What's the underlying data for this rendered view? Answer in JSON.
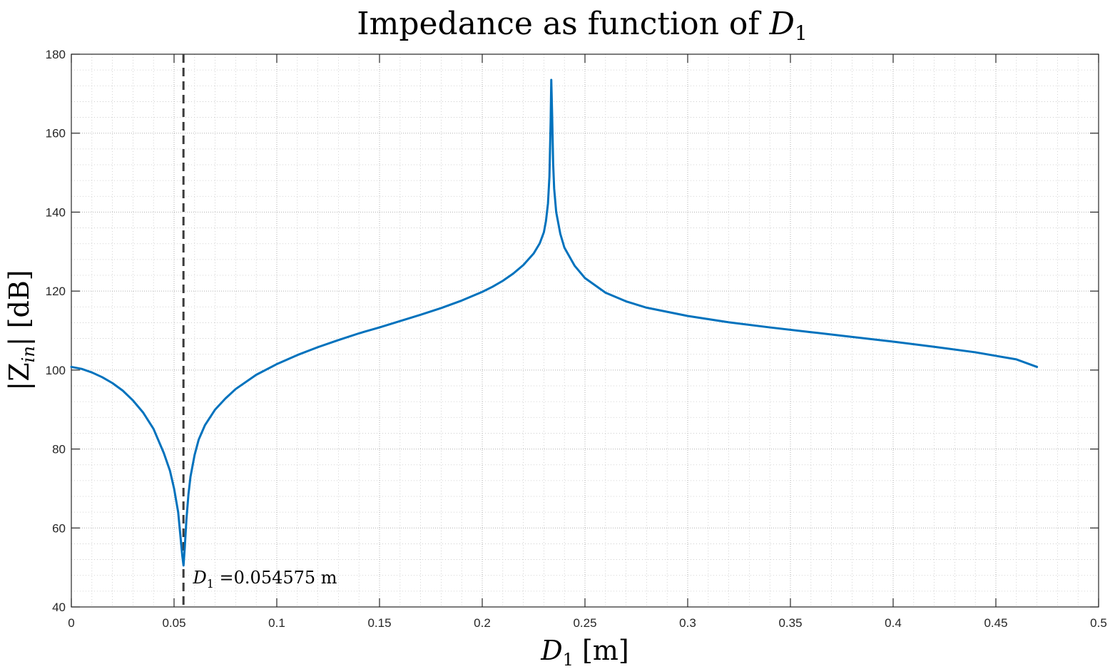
{
  "chart_data": {
    "type": "line",
    "title_main": "Impedance as function of ",
    "title_var": "D",
    "title_sub": "1",
    "xlabel_var": "D",
    "xlabel_sub": "1",
    "xlabel_unit": "[m]",
    "ylabel_pre": "|Z",
    "ylabel_sub": "in",
    "ylabel_post": "| [dB]",
    "xlim": [
      0,
      0.5
    ],
    "ylim": [
      40,
      180
    ],
    "x_ticks": [
      0,
      0.05,
      0.1,
      0.15,
      0.2,
      0.25,
      0.3,
      0.35,
      0.4,
      0.45,
      0.5
    ],
    "x_tick_labels": [
      "0",
      "0.05",
      "0.1",
      "0.15",
      "0.2",
      "0.25",
      "0.3",
      "0.35",
      "0.4",
      "0.45",
      "0.5"
    ],
    "y_ticks": [
      40,
      60,
      80,
      100,
      120,
      140,
      160,
      180
    ],
    "y_tick_labels": [
      "40",
      "60",
      "80",
      "100",
      "120",
      "140",
      "160",
      "180"
    ],
    "grid": true,
    "minor_grid": true,
    "series": [
      {
        "color": "#0072BD",
        "x": [
          0,
          0.005,
          0.01,
          0.015,
          0.02,
          0.025,
          0.03,
          0.035,
          0.04,
          0.045,
          0.048,
          0.05,
          0.052,
          0.053,
          0.054,
          0.0546,
          0.0552,
          0.056,
          0.057,
          0.058,
          0.06,
          0.062,
          0.065,
          0.07,
          0.075,
          0.08,
          0.09,
          0.1,
          0.11,
          0.12,
          0.13,
          0.14,
          0.15,
          0.16,
          0.17,
          0.18,
          0.19,
          0.2,
          0.205,
          0.21,
          0.215,
          0.22,
          0.225,
          0.228,
          0.23,
          0.231,
          0.232,
          0.2327,
          0.2333,
          0.2336,
          0.234,
          0.2345,
          0.235,
          0.236,
          0.238,
          0.24,
          0.245,
          0.25,
          0.26,
          0.27,
          0.28,
          0.3,
          0.32,
          0.34,
          0.36,
          0.38,
          0.4,
          0.42,
          0.44,
          0.46,
          0.47
        ],
        "y": [
          100.8,
          100.3,
          99.4,
          98.2,
          96.7,
          94.8,
          92.3,
          89.2,
          85.1,
          79.0,
          74.5,
          70.0,
          64.0,
          58.5,
          53.0,
          50.5,
          55.0,
          62.0,
          68.5,
          73.0,
          78.5,
          82.4,
          86.0,
          90.0,
          92.8,
          95.2,
          98.8,
          101.5,
          103.8,
          105.8,
          107.6,
          109.3,
          110.8,
          112.4,
          114.0,
          115.7,
          117.6,
          119.8,
          121.1,
          122.6,
          124.4,
          126.6,
          129.5,
          132.1,
          134.9,
          137.7,
          142.2,
          149.0,
          163.0,
          173.5,
          165.0,
          152.5,
          146.0,
          140.0,
          134.5,
          131.0,
          126.4,
          123.3,
          119.6,
          117.4,
          115.8,
          113.7,
          112.1,
          110.8,
          109.6,
          108.4,
          107.2,
          105.9,
          104.5,
          102.7,
          100.8
        ]
      }
    ],
    "vline": {
      "x": 0.054575,
      "style": "dashed",
      "color": "#3a3a3a"
    },
    "annotation": {
      "var": "D",
      "sub": "1",
      "text": " =0.054575 m",
      "x": 0.0592,
      "y": 46
    }
  }
}
